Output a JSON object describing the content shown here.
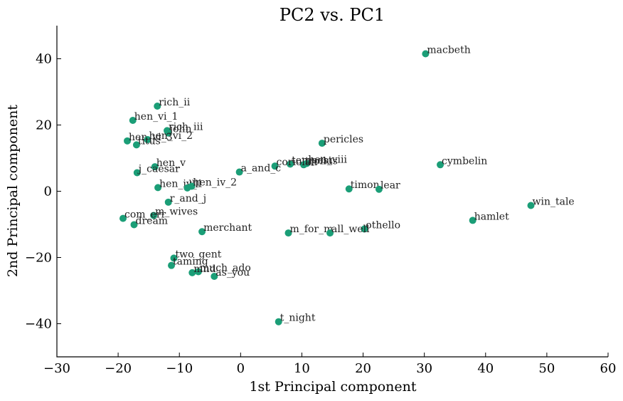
{
  "chart_data": {
    "type": "scatter",
    "title": "PC2 vs. PC1",
    "xlabel": "1st Principal component",
    "ylabel": "2nd Principal component",
    "xlim": [
      -30,
      60
    ],
    "ylim": [
      -50,
      50
    ],
    "xticks": [
      "−30",
      "−20",
      "−10",
      "0",
      "10",
      "20",
      "30",
      "40",
      "50",
      "60"
    ],
    "yticks": [
      "−40",
      "−20",
      "0",
      "20",
      "40"
    ],
    "grid": false,
    "marker_color": "#1b9e77",
    "points": [
      {
        "label": "macbeth",
        "x": 30.2,
        "y": 41.5
      },
      {
        "label": "rich_ii",
        "x": -13.6,
        "y": 25.7
      },
      {
        "label": "hen_vi_1",
        "x": -17.6,
        "y": 21.4
      },
      {
        "label": "rich_iii",
        "x": -12.0,
        "y": 18.3
      },
      {
        "label": "john",
        "x": -11.8,
        "y": 17.6
      },
      {
        "label": "hen_vi_3",
        "x": -18.5,
        "y": 15.2
      },
      {
        "label": "hen_vi_2",
        "x": -15.2,
        "y": 15.6
      },
      {
        "label": "titus",
        "x": -17.0,
        "y": 14.0
      },
      {
        "label": "pericles",
        "x": 13.3,
        "y": 14.5
      },
      {
        "label": "cymbelin",
        "x": 32.6,
        "y": 8.0
      },
      {
        "label": "hen_viii",
        "x": 10.8,
        "y": 8.4
      },
      {
        "label": "tempest",
        "x": 8.1,
        "y": 8.2
      },
      {
        "label": "troilus",
        "x": 10.3,
        "y": 8.0
      },
      {
        "label": "coriolan",
        "x": 5.6,
        "y": 7.6
      },
      {
        "label": "hen_v",
        "x": -14.0,
        "y": 7.4
      },
      {
        "label": "j_caesar",
        "x": -16.9,
        "y": 5.6
      },
      {
        "label": "a_and_c",
        "x": -0.2,
        "y": 5.8
      },
      {
        "label": "hen_iv_1",
        "x": -13.5,
        "y": 1.1
      },
      {
        "label": "lll",
        "x": -8.7,
        "y": 1.0
      },
      {
        "label": "hen_iv_2",
        "x": -8.0,
        "y": 1.5
      },
      {
        "label": "timon",
        "x": 17.7,
        "y": 0.7
      },
      {
        "label": "lear",
        "x": 22.6,
        "y": 0.6
      },
      {
        "label": "win_tale",
        "x": 47.4,
        "y": -4.3
      },
      {
        "label": "r_and_j",
        "x": -11.8,
        "y": -3.3
      },
      {
        "label": "m_wives",
        "x": -14.2,
        "y": -7.3
      },
      {
        "label": "com_err",
        "x": -19.2,
        "y": -8.2
      },
      {
        "label": "dream",
        "x": -17.4,
        "y": -10.1
      },
      {
        "label": "hamlet",
        "x": 37.9,
        "y": -8.8
      },
      {
        "label": "othello",
        "x": 20.2,
        "y": -11.4
      },
      {
        "label": "merchant",
        "x": -6.3,
        "y": -12.2
      },
      {
        "label": "m_for_m",
        "x": 7.8,
        "y": -12.6
      },
      {
        "label": "all_well",
        "x": 14.6,
        "y": -12.6
      },
      {
        "label": "two_gent",
        "x": -10.9,
        "y": -20.2
      },
      {
        "label": "taming",
        "x": -11.3,
        "y": -22.4
      },
      {
        "label": "much_ado",
        "x": -6.9,
        "y": -24.3
      },
      {
        "label": "mnd",
        "x": -7.9,
        "y": -24.6
      },
      {
        "label": "as_you",
        "x": -4.3,
        "y": -25.7
      },
      {
        "label": "t_night",
        "x": 6.2,
        "y": -39.4
      }
    ]
  }
}
